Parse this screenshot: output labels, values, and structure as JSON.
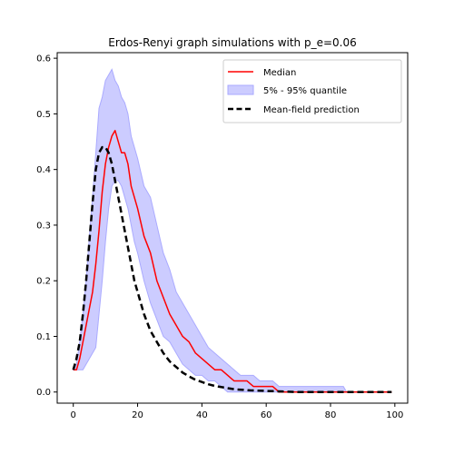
{
  "chart_data": {
    "type": "line",
    "title": "Erdos-Renyi graph simulations with p_e=0.06",
    "xlabel": "",
    "ylabel": "",
    "xlim": [
      -5,
      104
    ],
    "ylim": [
      -0.02,
      0.61
    ],
    "xticks": [
      0,
      20,
      40,
      60,
      80,
      100
    ],
    "yticks": [
      0.0,
      0.1,
      0.2,
      0.3,
      0.4,
      0.5,
      0.6
    ],
    "grid": false,
    "legend_position": "top-right",
    "legend": {
      "median": "Median",
      "band": "5% - 95% quantile",
      "meanfield": "Mean-field prediction"
    },
    "colors": {
      "median": "#ff0000",
      "band_fill": "#ccccff",
      "band_edge": "#aaaaff",
      "meanfield": "#000000"
    },
    "median": {
      "x": [
        0,
        1,
        2,
        3,
        4,
        5,
        6,
        7,
        8,
        9,
        10,
        11,
        12,
        13,
        14,
        15,
        16,
        17,
        18,
        19,
        20,
        22,
        24,
        26,
        28,
        30,
        32,
        34,
        36,
        38,
        40,
        42,
        44,
        46,
        48,
        50,
        52,
        54,
        56,
        58,
        60,
        62,
        64,
        66,
        70,
        75,
        80,
        85,
        90,
        95,
        99
      ],
      "y": [
        0.04,
        0.04,
        0.06,
        0.09,
        0.12,
        0.15,
        0.18,
        0.23,
        0.29,
        0.36,
        0.41,
        0.44,
        0.46,
        0.47,
        0.45,
        0.43,
        0.43,
        0.41,
        0.37,
        0.35,
        0.33,
        0.28,
        0.25,
        0.2,
        0.17,
        0.14,
        0.12,
        0.1,
        0.09,
        0.07,
        0.06,
        0.05,
        0.04,
        0.04,
        0.03,
        0.02,
        0.02,
        0.02,
        0.01,
        0.01,
        0.01,
        0.01,
        0.0,
        0.0,
        0.0,
        0.0,
        0.0,
        0.0,
        0.0,
        0.0,
        0.0
      ]
    },
    "quantile_band": {
      "x": [
        0,
        1,
        2,
        3,
        4,
        5,
        6,
        7,
        8,
        9,
        10,
        11,
        12,
        13,
        14,
        15,
        16,
        17,
        18,
        19,
        20,
        22,
        24,
        26,
        28,
        30,
        32,
        34,
        36,
        38,
        40,
        42,
        44,
        46,
        48,
        50,
        52,
        54,
        56,
        58,
        60,
        62,
        64,
        66,
        70,
        75,
        80,
        84,
        85,
        90,
        95,
        99
      ],
      "low": [
        0.04,
        0.04,
        0.04,
        0.04,
        0.05,
        0.06,
        0.07,
        0.08,
        0.14,
        0.2,
        0.27,
        0.33,
        0.37,
        0.38,
        0.38,
        0.37,
        0.35,
        0.33,
        0.3,
        0.27,
        0.25,
        0.2,
        0.16,
        0.13,
        0.1,
        0.09,
        0.07,
        0.05,
        0.04,
        0.03,
        0.03,
        0.02,
        0.02,
        0.01,
        0.0,
        0.0,
        0.0,
        0.0,
        0.0,
        0.0,
        0.0,
        0.0,
        0.0,
        0.0,
        0.0,
        0.0,
        0.0,
        0.0,
        0.0,
        0.0,
        0.0,
        0.0
      ],
      "high": [
        0.04,
        0.05,
        0.09,
        0.14,
        0.2,
        0.28,
        0.35,
        0.43,
        0.51,
        0.53,
        0.56,
        0.57,
        0.58,
        0.56,
        0.55,
        0.53,
        0.52,
        0.5,
        0.46,
        0.44,
        0.42,
        0.37,
        0.35,
        0.3,
        0.25,
        0.22,
        0.18,
        0.16,
        0.14,
        0.12,
        0.1,
        0.08,
        0.07,
        0.06,
        0.05,
        0.04,
        0.03,
        0.03,
        0.03,
        0.02,
        0.02,
        0.02,
        0.01,
        0.01,
        0.01,
        0.01,
        0.01,
        0.01,
        0.0,
        0.0,
        0.0,
        0.0
      ]
    },
    "meanfield": {
      "x": [
        0,
        1,
        2,
        3,
        4,
        5,
        6,
        7,
        8,
        9,
        10,
        11,
        12,
        13,
        14,
        15,
        16,
        17,
        18,
        19,
        20,
        22,
        24,
        26,
        28,
        30,
        32,
        34,
        36,
        38,
        40,
        42,
        44,
        46,
        48,
        50,
        55,
        60,
        65,
        70,
        80,
        90,
        99
      ],
      "y": [
        0.04,
        0.06,
        0.09,
        0.14,
        0.2,
        0.27,
        0.34,
        0.4,
        0.43,
        0.44,
        0.44,
        0.43,
        0.41,
        0.38,
        0.35,
        0.32,
        0.29,
        0.26,
        0.23,
        0.2,
        0.18,
        0.14,
        0.11,
        0.09,
        0.07,
        0.055,
        0.045,
        0.035,
        0.028,
        0.022,
        0.018,
        0.014,
        0.011,
        0.009,
        0.007,
        0.005,
        0.003,
        0.002,
        0.001,
        0.0,
        0.0,
        0.0,
        0.0
      ]
    }
  }
}
